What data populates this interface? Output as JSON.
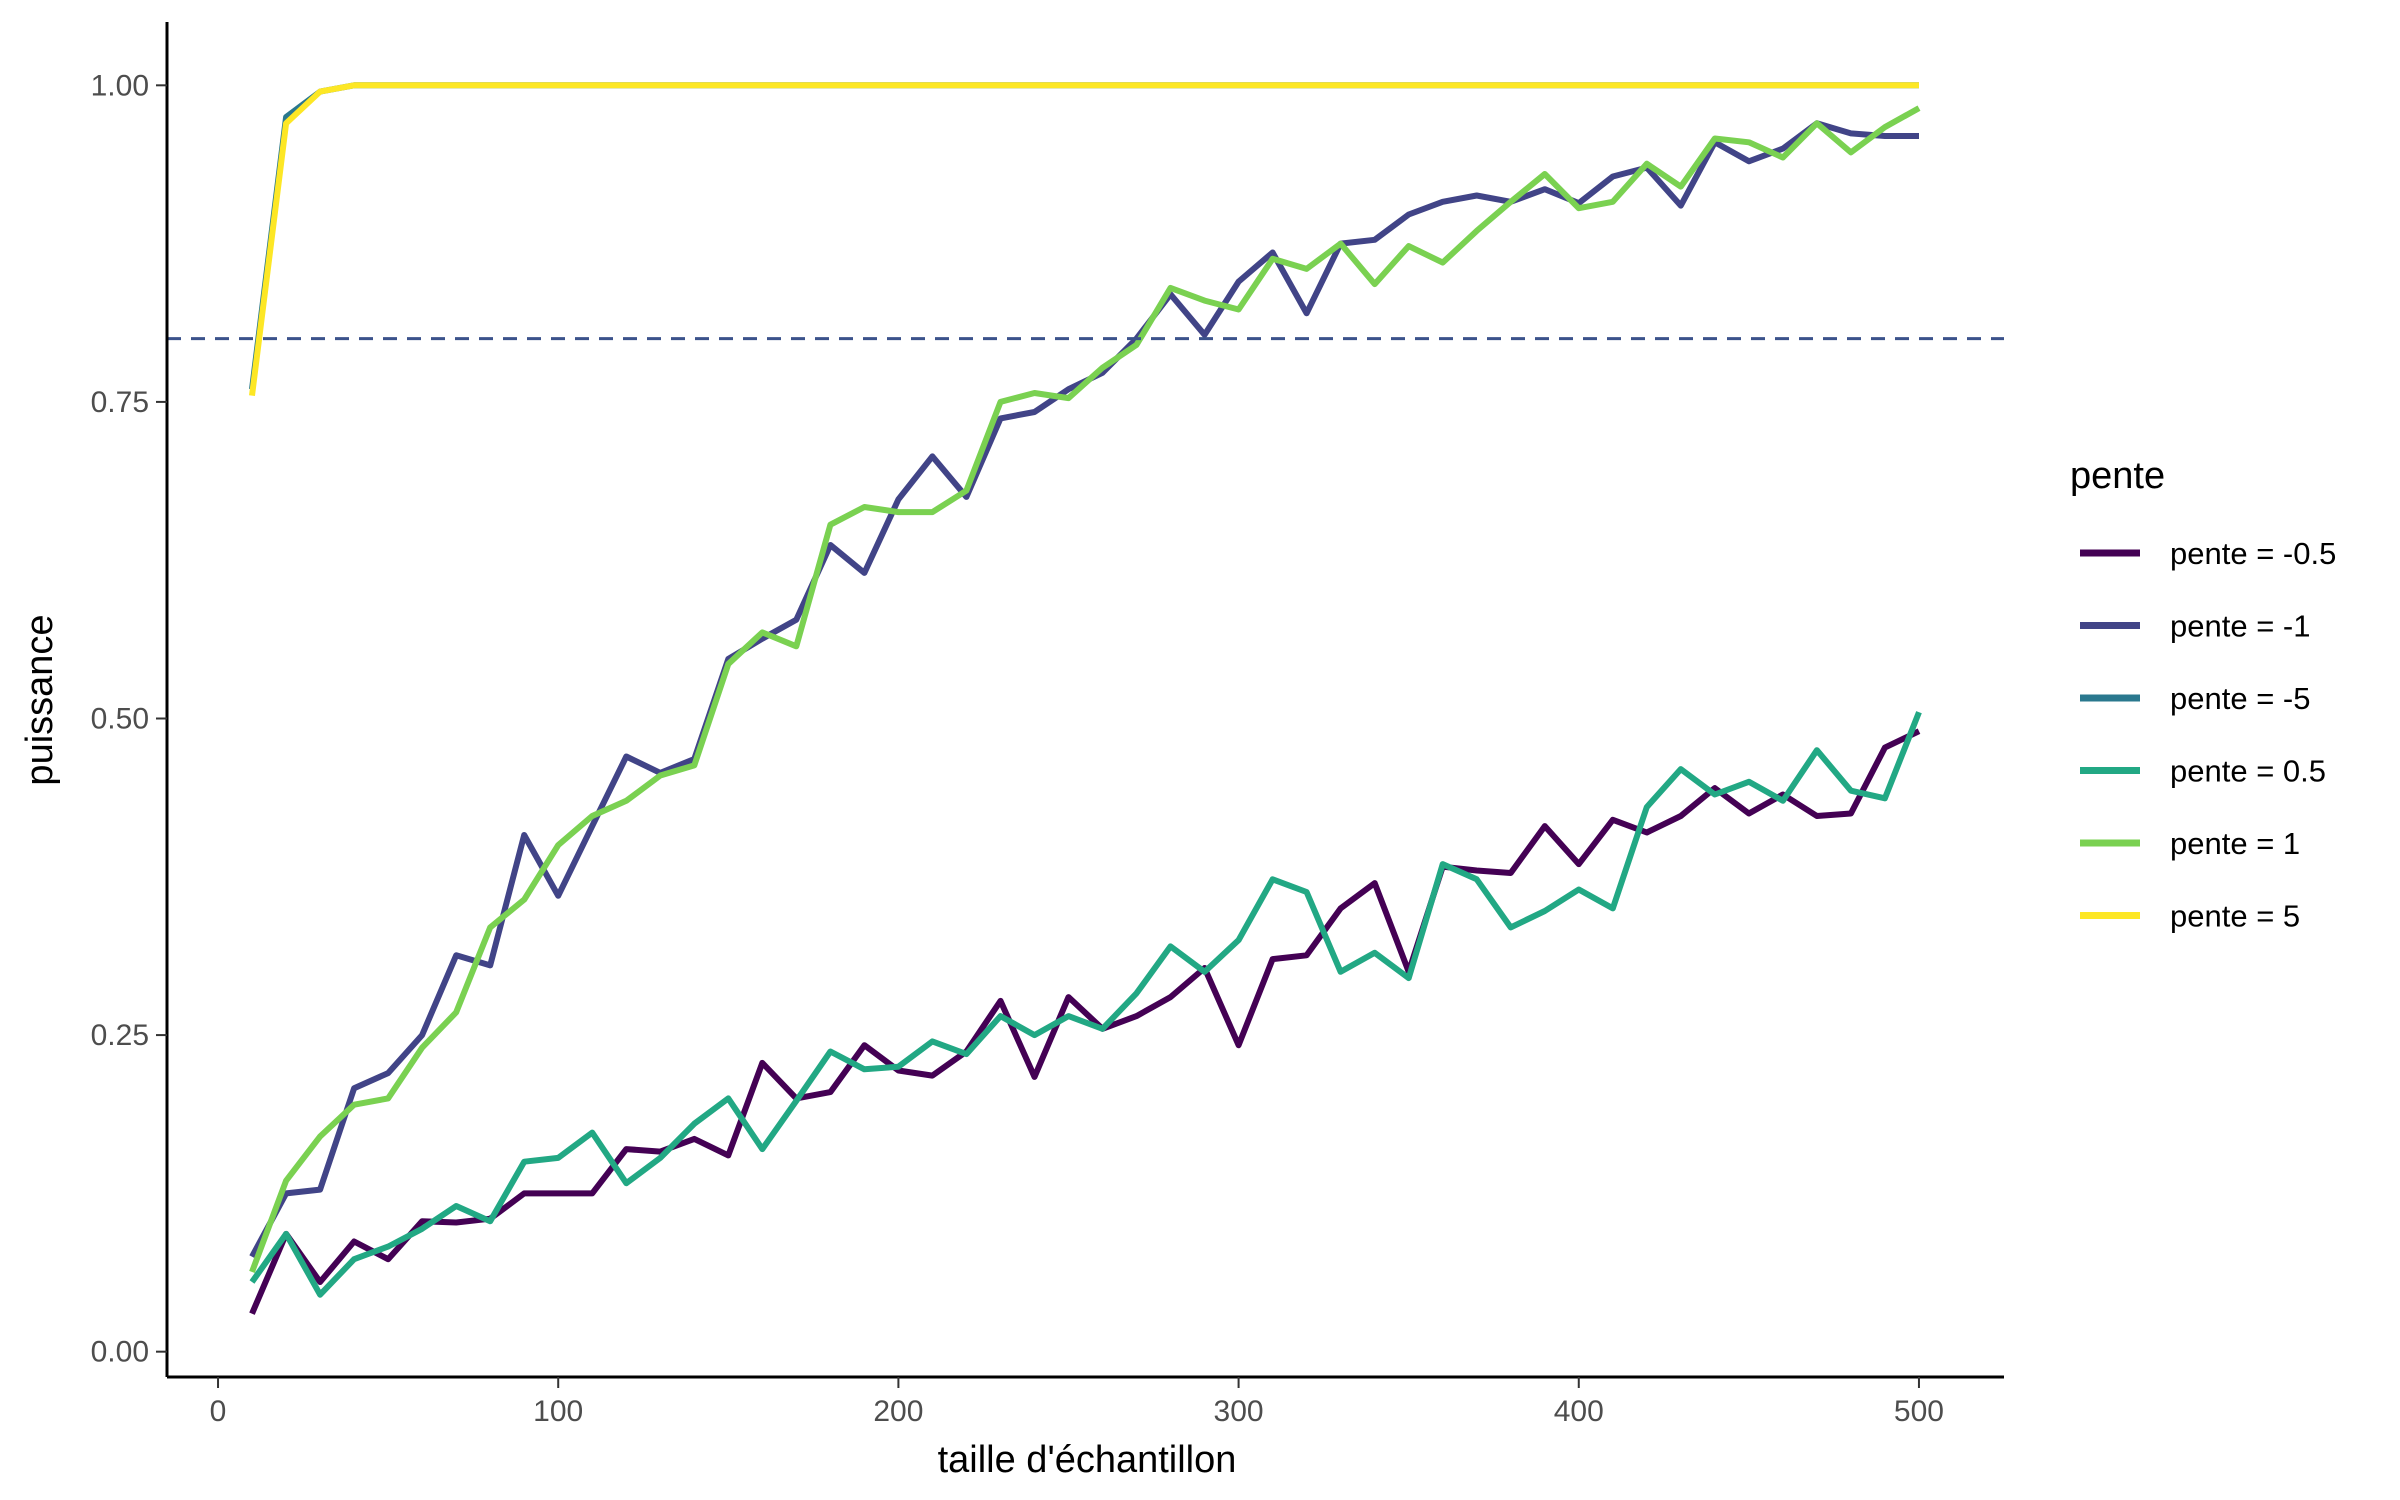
{
  "chart_data": {
    "type": "line",
    "xlabel": "taille d'échantillon",
    "ylabel": "puissance",
    "xlim": [
      -15,
      525
    ],
    "ylim": [
      -0.02,
      1.05
    ],
    "x_ticks": [
      0,
      100,
      200,
      300,
      400,
      500
    ],
    "x_tick_labels": [
      "0",
      "100",
      "200",
      "300",
      "400",
      "500"
    ],
    "y_ticks": [
      0,
      0.25,
      0.5,
      0.75,
      1
    ],
    "y_tick_labels": [
      "0.00",
      "0.25",
      "0.50",
      "0.75",
      "1.00"
    ],
    "grid": false,
    "legend": {
      "title": "pente",
      "position": "right"
    },
    "reference_line": {
      "y": 0.8,
      "style": "dashed",
      "color": "#3b528b"
    },
    "x": [
      10,
      20,
      30,
      40,
      50,
      60,
      70,
      80,
      90,
      100,
      110,
      120,
      130,
      140,
      150,
      160,
      170,
      180,
      190,
      200,
      210,
      220,
      230,
      240,
      250,
      260,
      270,
      280,
      290,
      300,
      310,
      320,
      330,
      340,
      350,
      360,
      370,
      380,
      390,
      400,
      410,
      420,
      430,
      440,
      450,
      460,
      470,
      480,
      490,
      500
    ],
    "series": [
      {
        "name": "pente = -0.5",
        "color": "#440154",
        "values": [
          0.03,
          0.093,
          0.055,
          0.087,
          0.073,
          0.103,
          0.102,
          0.105,
          0.125,
          0.125,
          0.125,
          0.16,
          0.158,
          0.168,
          0.155,
          0.228,
          0.2,
          0.205,
          0.242,
          0.222,
          0.218,
          0.237,
          0.277,
          0.217,
          0.28,
          0.255,
          0.265,
          0.28,
          0.303,
          0.242,
          0.31,
          0.313,
          0.35,
          0.37,
          0.3,
          0.383,
          0.38,
          0.378,
          0.415,
          0.385,
          0.42,
          0.41,
          0.423,
          0.445,
          0.425,
          0.44,
          0.423,
          0.425,
          0.477,
          0.49
        ]
      },
      {
        "name": "pente = -1",
        "color": "#414487",
        "values": [
          0.075,
          0.125,
          0.128,
          0.208,
          0.22,
          0.25,
          0.313,
          0.305,
          0.408,
          0.36,
          0.415,
          0.47,
          0.457,
          0.468,
          0.547,
          0.563,
          0.578,
          0.637,
          0.615,
          0.673,
          0.707,
          0.675,
          0.737,
          0.742,
          0.76,
          0.773,
          0.8,
          0.835,
          0.803,
          0.845,
          0.868,
          0.82,
          0.875,
          0.878,
          0.898,
          0.908,
          0.913,
          0.908,
          0.918,
          0.907,
          0.928,
          0.935,
          0.905,
          0.955,
          0.94,
          0.95,
          0.97,
          0.962,
          0.96,
          0.96
        ]
      },
      {
        "name": "pente = -5",
        "color": "#2a788e",
        "values": [
          0.76,
          0.975,
          0.995,
          1,
          1,
          1,
          1,
          1,
          1,
          1,
          1,
          1,
          1,
          1,
          1,
          1,
          1,
          1,
          1,
          1,
          1,
          1,
          1,
          1,
          1,
          1,
          1,
          1,
          1,
          1,
          1,
          1,
          1,
          1,
          1,
          1,
          1,
          1,
          1,
          1,
          1,
          1,
          1,
          1,
          1,
          1,
          1,
          1,
          1,
          1
        ]
      },
      {
        "name": "pente = 0.5",
        "color": "#22a884",
        "values": [
          0.055,
          0.093,
          0.045,
          0.073,
          0.083,
          0.097,
          0.115,
          0.103,
          0.15,
          0.153,
          0.173,
          0.133,
          0.153,
          0.18,
          0.2,
          0.16,
          0.198,
          0.237,
          0.223,
          0.225,
          0.245,
          0.235,
          0.265,
          0.25,
          0.265,
          0.255,
          0.283,
          0.32,
          0.3,
          0.325,
          0.373,
          0.363,
          0.3,
          0.315,
          0.295,
          0.385,
          0.373,
          0.335,
          0.348,
          0.365,
          0.35,
          0.43,
          0.46,
          0.44,
          0.45,
          0.435,
          0.475,
          0.443,
          0.437,
          0.505
        ]
      },
      {
        "name": "pente = 1",
        "color": "#7ad151",
        "values": [
          0.063,
          0.135,
          0.17,
          0.195,
          0.2,
          0.24,
          0.268,
          0.335,
          0.357,
          0.4,
          0.423,
          0.435,
          0.455,
          0.463,
          0.543,
          0.568,
          0.557,
          0.653,
          0.667,
          0.663,
          0.663,
          0.68,
          0.75,
          0.757,
          0.753,
          0.777,
          0.795,
          0.84,
          0.83,
          0.823,
          0.863,
          0.855,
          0.875,
          0.843,
          0.873,
          0.86,
          0.885,
          0.908,
          0.93,
          0.903,
          0.908,
          0.938,
          0.92,
          0.958,
          0.955,
          0.943,
          0.97,
          0.947,
          0.967,
          0.982
        ]
      },
      {
        "name": "pente = 5",
        "color": "#fde725",
        "values": [
          0.755,
          0.97,
          0.995,
          1,
          1,
          1,
          1,
          1,
          1,
          1,
          1,
          1,
          1,
          1,
          1,
          1,
          1,
          1,
          1,
          1,
          1,
          1,
          1,
          1,
          1,
          1,
          1,
          1,
          1,
          1,
          1,
          1,
          1,
          1,
          1,
          1,
          1,
          1,
          1,
          1,
          1,
          1,
          1,
          1,
          1,
          1,
          1,
          1,
          1,
          1
        ]
      }
    ]
  }
}
